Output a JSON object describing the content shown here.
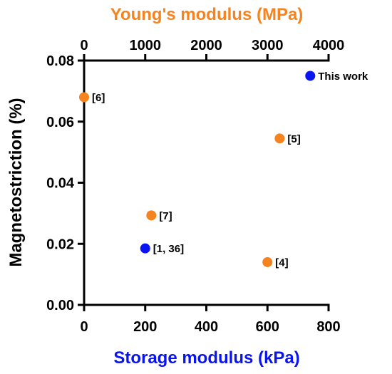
{
  "chart_data": {
    "type": "scatter",
    "title": "",
    "xlabel": "Storage modulus (kPa)",
    "x2label": "Young's modulus (MPa)",
    "ylabel": "Magnetostriction (%)",
    "xlim": [
      0,
      800
    ],
    "x2lim": [
      0,
      4000
    ],
    "ylim": [
      0,
      0.08
    ],
    "x_ticks": [
      "0",
      "200",
      "400",
      "600",
      "800"
    ],
    "x2_ticks": [
      "0",
      "1000",
      "2000",
      "3000",
      "4000"
    ],
    "y_ticks": [
      "0.00",
      "0.02",
      "0.04",
      "0.06",
      "0.08"
    ],
    "grid": false,
    "series": [
      {
        "axis": "bottom",
        "color": "#0a14f0",
        "points": [
          {
            "x": 200,
            "y": 0.0185,
            "label": "[1, 36]"
          },
          {
            "x": 740,
            "y": 0.075,
            "label": "This work"
          }
        ]
      },
      {
        "axis": "top",
        "color": "#f5831f",
        "points": [
          {
            "x": 0,
            "y": 0.068,
            "label": "[6]"
          },
          {
            "x": 3200,
            "y": 0.0545,
            "label": "[5]"
          },
          {
            "x": 1100,
            "y": 0.0293,
            "label": "[7]"
          },
          {
            "x": 3000,
            "y": 0.014,
            "label": "[4]"
          }
        ]
      }
    ],
    "colors": {
      "bottom_axis_title": "#0a14f0",
      "top_axis_title": "#f5831f",
      "axis": "#000000"
    }
  }
}
